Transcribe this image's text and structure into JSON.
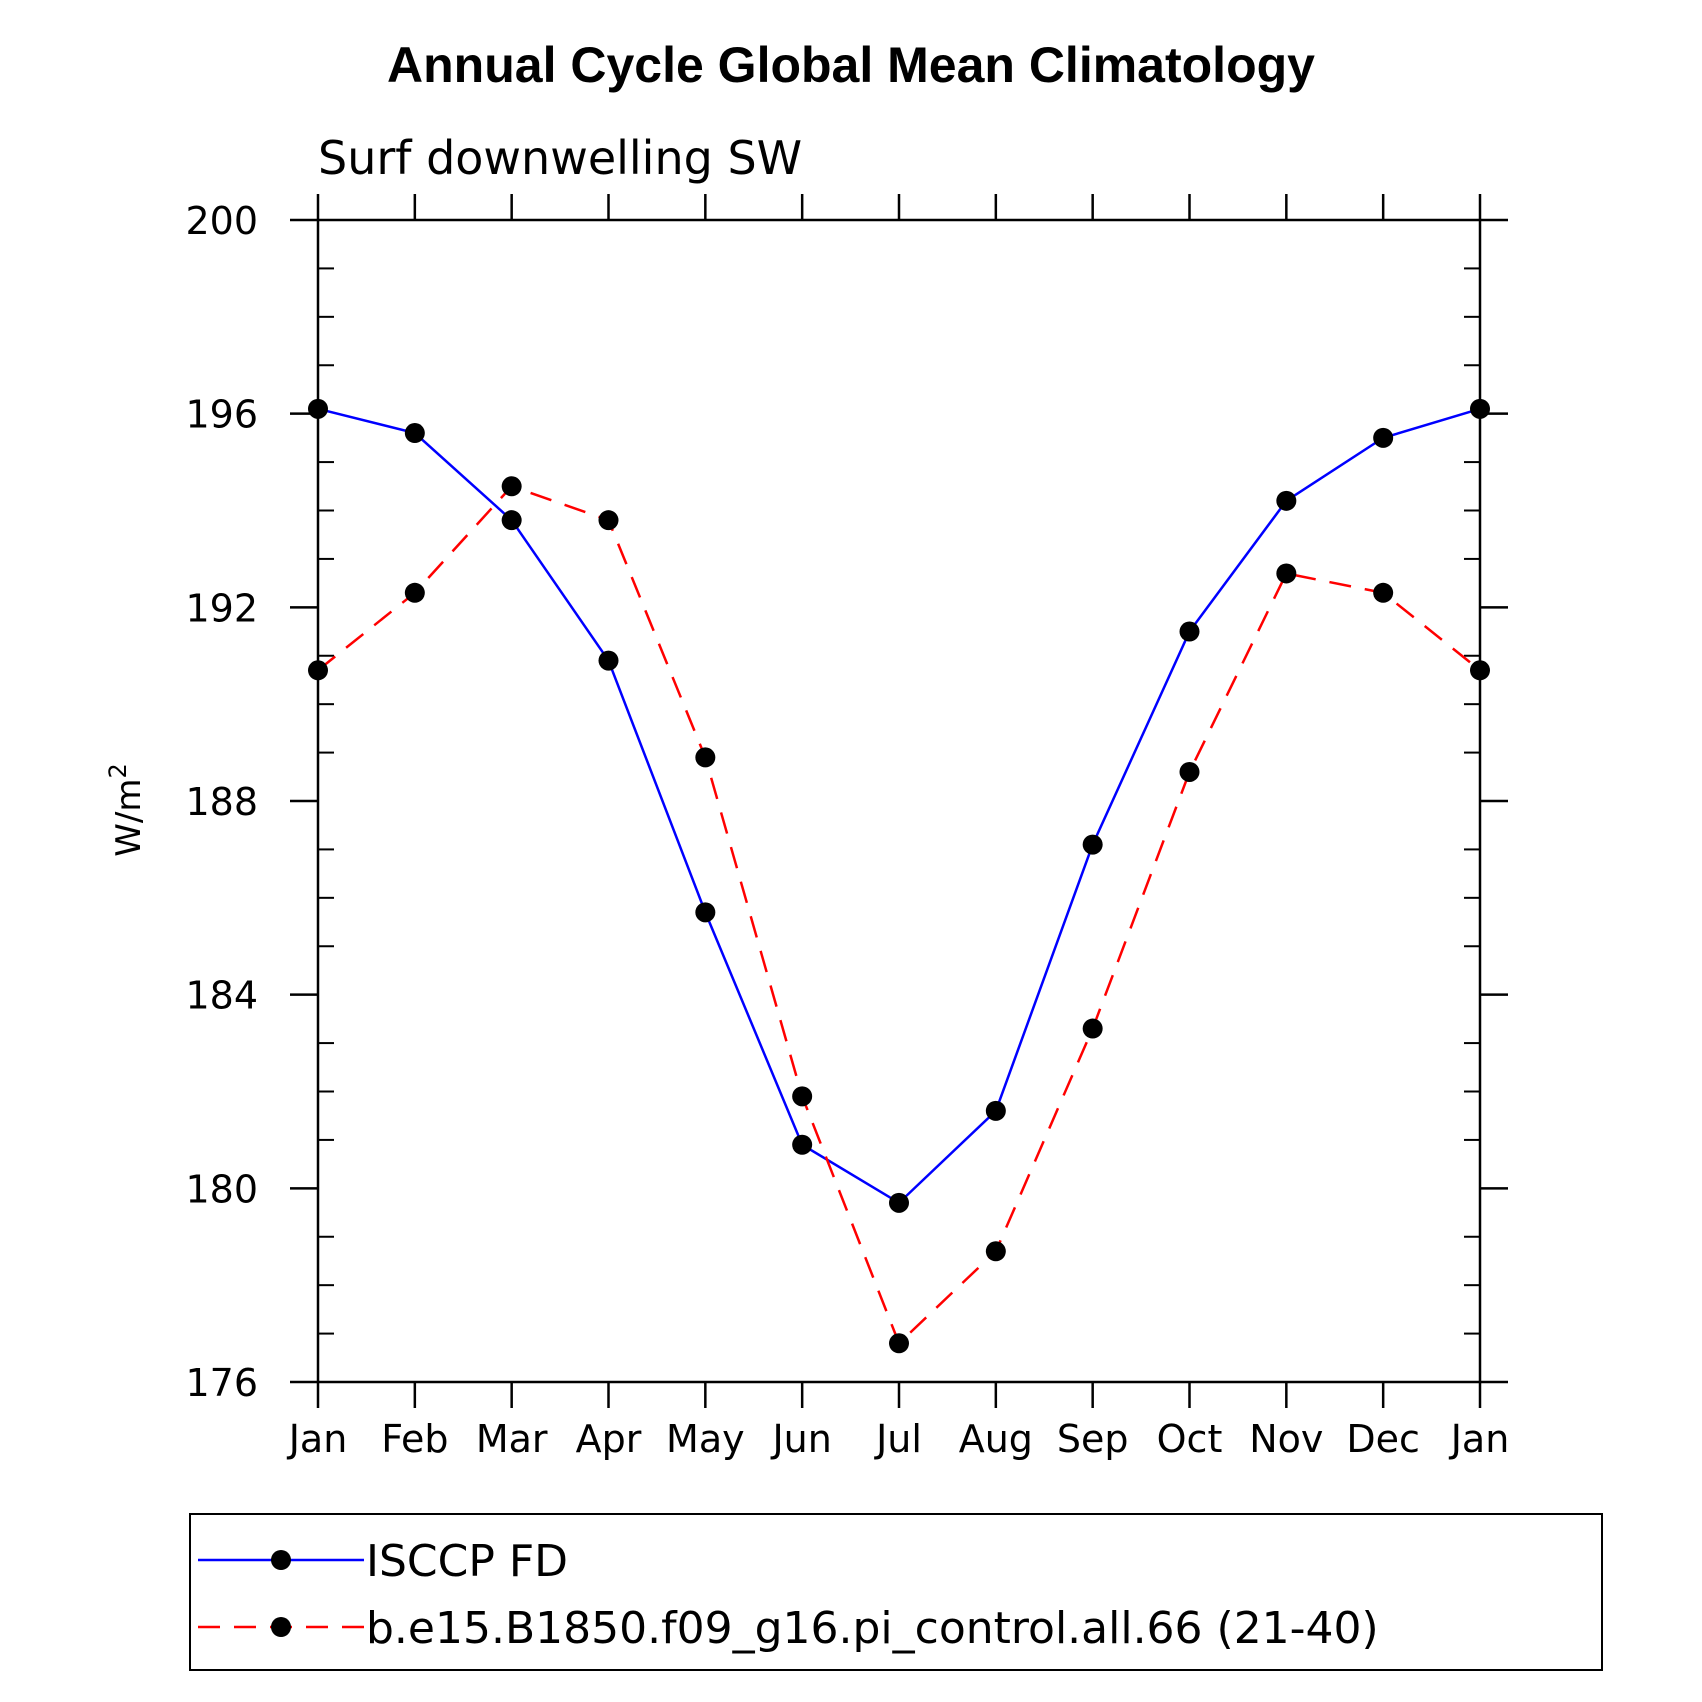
{
  "chart_data": {
    "type": "line",
    "title": "Annual Cycle Global Mean Climatology",
    "subtitle": "Surf downwelling SW",
    "ylabel": "W/m",
    "ylabel_superscript": "2",
    "categories": [
      "Jan",
      "Feb",
      "Mar",
      "Apr",
      "May",
      "Jun",
      "Jul",
      "Aug",
      "Sep",
      "Oct",
      "Nov",
      "Dec",
      "Jan"
    ],
    "ylim": [
      176,
      200
    ],
    "yticks": [
      176,
      180,
      184,
      188,
      192,
      196,
      200
    ],
    "ytick_labels": [
      "176",
      "180",
      "184",
      "188",
      "192",
      "196",
      "200"
    ],
    "series": [
      {
        "name": "ISCCP FD",
        "color": "#0000ff",
        "dash": "solid",
        "values": [
          196.1,
          195.6,
          193.8,
          190.9,
          185.7,
          180.9,
          179.7,
          181.6,
          187.1,
          191.5,
          194.2,
          195.5,
          196.1
        ]
      },
      {
        "name": "b.e15.B1850.f09_g16.pi_control.all.66 (21-40)",
        "color": "#ff0000",
        "dash": "dashed",
        "values": [
          190.7,
          192.3,
          194.5,
          193.8,
          188.9,
          181.9,
          176.8,
          178.7,
          183.3,
          188.6,
          192.7,
          192.3,
          190.7
        ]
      }
    ],
    "legend_position": "bottom",
    "grid": false
  }
}
